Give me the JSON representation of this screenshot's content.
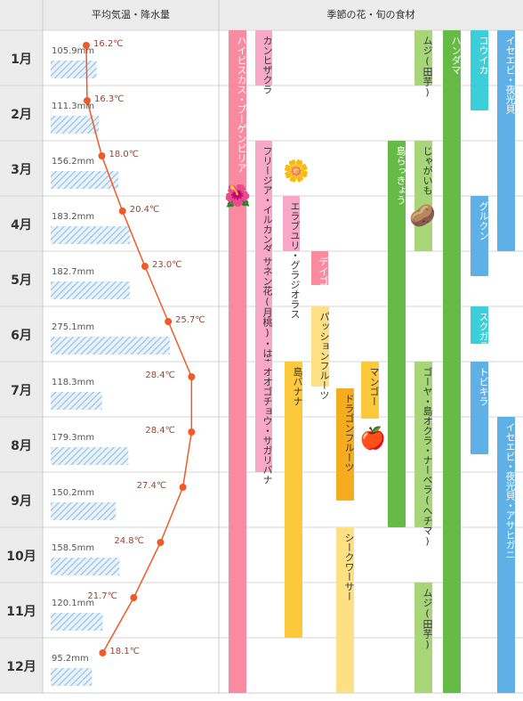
{
  "header": {
    "climate_title": "平均気温・降水量",
    "season_title": "季節の花・旬の食材"
  },
  "chart_data": {
    "type": "bar+line",
    "categories": [
      "1月",
      "2月",
      "3月",
      "4月",
      "5月",
      "6月",
      "7月",
      "8月",
      "9月",
      "10月",
      "11月",
      "12月"
    ],
    "precipitation_mm": [
      105.9,
      111.3,
      156.2,
      183.2,
      182.7,
      275.1,
      118.3,
      179.3,
      150.2,
      158.5,
      120.1,
      95.2
    ],
    "precipitation_labels": [
      "105.9mm",
      "111.3mm",
      "156.2mm",
      "183.2mm",
      "182.7mm",
      "275.1mm",
      "118.3mm",
      "179.3mm",
      "150.2mm",
      "158.5mm",
      "120.1mm",
      "95.2mm"
    ],
    "temperature_c": [
      16.2,
      16.3,
      18.0,
      20.4,
      23.0,
      25.7,
      28.4,
      28.4,
      27.4,
      24.8,
      21.7,
      18.1
    ],
    "temperature_labels": [
      "16.2℃",
      "16.3℃",
      "18.0℃",
      "20.4℃",
      "23.0℃",
      "25.7℃",
      "28.4℃",
      "28.4℃",
      "27.4℃",
      "24.8℃",
      "21.7℃",
      "18.1℃"
    ],
    "colors": {
      "temperature": "#f05a28",
      "precipitation": "#9bc3e6"
    }
  },
  "seasonal": {
    "items": [
      {
        "name": "ハイビスカス・ブーゲンビリア",
        "start": 1,
        "end": 12,
        "color": "#f98aa0"
      },
      {
        "name": "カンヒザクラ",
        "start": 1,
        "end": 1,
        "color": "#f7a8c6"
      },
      {
        "name": "フリージア・イルカンダ",
        "start": 3,
        "end": 4,
        "color": "#f7a8c6"
      },
      {
        "name": "サネン花(月桃)・はまゆう",
        "start": 5,
        "end": 6,
        "color": "#f7a8c6"
      },
      {
        "name": "オオゴチョウ・サガリバナ",
        "start": 7,
        "end": 8,
        "color": "#f7a8c6"
      },
      {
        "name": "エラブユリ・グラジオラス",
        "start": 4,
        "end": 4,
        "color": "#f7a8c6"
      },
      {
        "name": "デイゴ",
        "start": 5,
        "end": 5,
        "color": "#f98aa0"
      },
      {
        "name": "島バナナ",
        "start": 7,
        "end": 11,
        "color": "#fcc83c"
      },
      {
        "name": "パッションフルーツ",
        "start": 6,
        "end": 7,
        "color": "#fde083"
      },
      {
        "name": "ドラゴンフルーツ",
        "start": 7,
        "end": 9,
        "color": "#f5ad1f"
      },
      {
        "name": "シークワーサー",
        "start": 10,
        "end": 12,
        "color": "#fde083"
      },
      {
        "name": "マンゴー",
        "start": 7,
        "end": 8,
        "color": "#fcc83c"
      },
      {
        "name": "島らっきょう",
        "start": 3,
        "end": 9,
        "color": "#66bb47"
      },
      {
        "name": "ムジ(田芋)",
        "start": 1,
        "end": 1,
        "color": "#a7d577"
      },
      {
        "name": "じゃがいも",
        "start": 3,
        "end": 4,
        "color": "#a7d577"
      },
      {
        "name": "ゴーヤ・島オクラ・ナーベラ(ヘチマ)",
        "start": 7,
        "end": 9,
        "color": "#a7d577"
      },
      {
        "name": "ムジ(田芋)",
        "start": 11,
        "end": 12,
        "color": "#a7d577"
      },
      {
        "name": "ハンダマ",
        "start": 1,
        "end": 12,
        "color": "#66bb47"
      },
      {
        "name": "コウイカ",
        "start": 1,
        "end": 2,
        "color": "#3dcfd9"
      },
      {
        "name": "グルクン",
        "start": 4,
        "end": 5,
        "color": "#5fb0e6"
      },
      {
        "name": "スクガラス",
        "start": 6,
        "end": 6,
        "color": "#3dcfd9"
      },
      {
        "name": "トビキラ",
        "start": 7,
        "end": 8,
        "color": "#5fb0e6"
      },
      {
        "name": "イセエビ・夜光貝",
        "start": 1,
        "end": 4,
        "color": "#5fb0e6"
      },
      {
        "name": "イセエビ・夜光貝・アサヒガニ",
        "start": 8,
        "end": 12,
        "color": "#5fb0e6"
      }
    ]
  },
  "icons": {
    "hibiscus": "hibiscus-icon",
    "lily": "lily-icon",
    "potato": "potato-icon",
    "mango": "mango-icon"
  }
}
